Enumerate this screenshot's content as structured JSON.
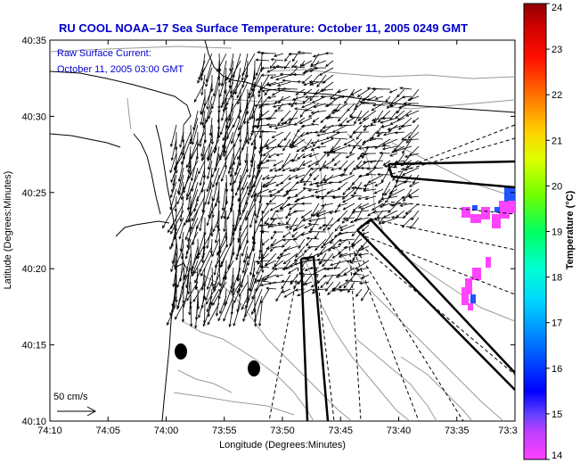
{
  "title": "RU COOL  NOAA–17  Sea Surface Temperature:  October 11, 2005 0249 GMT",
  "subtitle_line1": "Raw Surface Current:",
  "subtitle_line2": "October 11, 2005 03:00 GMT",
  "scale_label": "50 cm/s",
  "map": {
    "xlabel": "Longitude (Degrees:Minutes)",
    "ylabel": "Latitude (Degrees:Minutes)",
    "x_ticks": [
      "74:10",
      "74:05",
      "74:00",
      "73:55",
      "73:50",
      "73:45",
      "73:40",
      "73:35",
      "73:3"
    ],
    "y_ticks": [
      "40:35",
      "40:30",
      "40:25",
      "40:20",
      "40:15",
      "40:10"
    ],
    "lon_range": [
      "74:10 W",
      "73:30 W"
    ],
    "lat_range": [
      "40:10 N",
      "40:35 N"
    ]
  },
  "colorbar": {
    "label": "Temperature (°C)",
    "ticks": [
      "24",
      "23",
      "22",
      "21",
      "20",
      "19",
      "18",
      "17",
      "16",
      "15",
      "14"
    ],
    "range": [
      14,
      24
    ],
    "colors": [
      "#ff00ff",
      "#8000ff",
      "#0000ff",
      "#0080ff",
      "#00ffff",
      "#00ff80",
      "#80ff00",
      "#ffff00",
      "#ff8000",
      "#ff0000",
      "#800000"
    ]
  },
  "colors": {
    "title": "#0000cc",
    "sst_patch": "#ff44ff",
    "sst_cool": "#2255ff"
  }
}
